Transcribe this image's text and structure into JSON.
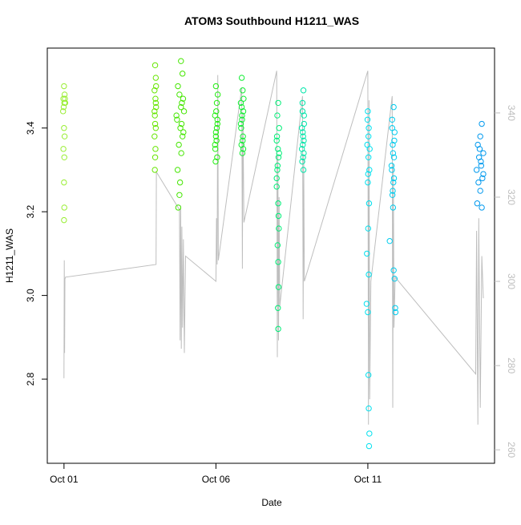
{
  "chart_data": {
    "type": "scatter",
    "title": "ATOM3 Southbound H1211_WAS",
    "xlabel": "Date",
    "ylabel": "H1211_WAS",
    "xlim": [
      -0.55,
      14.17
    ],
    "xticks": [
      {
        "value": 0,
        "label": "Oct 01"
      },
      {
        "value": 5,
        "label": "Oct 06"
      },
      {
        "value": 10,
        "label": "Oct 11"
      }
    ],
    "ylim": [
      2.599,
      3.591
    ],
    "yticks": [
      2.8,
      {
        "value": 3,
        "label": "3.0"
      },
      3.2,
      3.4
    ],
    "y2lim": [
      256.8,
      355.4
    ],
    "y2ticks": [
      260,
      280,
      300,
      320,
      340
    ],
    "y2color": "#bebebe",
    "series": [
      {
        "color": "#99ee33",
        "x": [
          0,
          0.02,
          -0.02,
          0.01,
          -0.01,
          0.03,
          0.0,
          0.02,
          -0.02,
          0.01,
          0.0,
          0.01,
          0.0,
          0.04,
          -0.03
        ],
        "values": [
          3.5,
          3.48,
          3.47,
          3.46,
          3.45,
          3.47,
          3.4,
          3.38,
          3.35,
          3.33,
          3.27,
          3.21,
          3.18,
          3.46,
          3.44
        ]
      },
      {
        "color": "#66e600",
        "x": [
          3.0,
          3.02,
          2.98,
          3.01,
          3.03,
          2.99,
          3.0,
          3.02,
          2.98,
          3.01,
          3.0,
          2.99,
          3.03,
          3.02,
          2.98
        ],
        "values": [
          3.55,
          3.52,
          3.49,
          3.47,
          3.45,
          3.43,
          3.41,
          3.4,
          3.38,
          3.35,
          3.33,
          3.3,
          3.5,
          3.46,
          3.44
        ]
      },
      {
        "color": "#44e600",
        "x": [
          3.85,
          3.9,
          3.75,
          3.8,
          3.88,
          3.95,
          3.72,
          3.83,
          3.9,
          3.78,
          3.86,
          3.74,
          3.82,
          3.8,
          3.76,
          3.92,
          3.85,
          3.7,
          3.87,
          3.93
        ],
        "values": [
          3.56,
          3.53,
          3.5,
          3.48,
          3.46,
          3.44,
          3.42,
          3.4,
          3.38,
          3.36,
          3.34,
          3.3,
          3.27,
          3.24,
          3.21,
          3.47,
          3.45,
          3.43,
          3.41,
          3.39
        ]
      },
      {
        "color": "#22ee11",
        "x": [
          5.0,
          5.03,
          4.97,
          5.05,
          5.0,
          5.02,
          4.98,
          5.04,
          4.99,
          5.06,
          5.01,
          5.03,
          4.97,
          5.05,
          5.0
        ],
        "values": [
          3.5,
          3.46,
          3.43,
          3.41,
          3.39,
          3.37,
          3.35,
          3.33,
          3.32,
          3.48,
          3.44,
          3.4,
          3.36,
          3.42,
          3.38
        ]
      },
      {
        "color": "#11ee33",
        "x": [
          5.85,
          5.88,
          5.82,
          5.9,
          5.86,
          5.83,
          5.89,
          5.84,
          5.87,
          5.91,
          5.85,
          5.82,
          5.88,
          5.9,
          5.86
        ],
        "values": [
          3.52,
          3.49,
          3.46,
          3.44,
          3.42,
          3.4,
          3.38,
          3.36,
          3.34,
          3.47,
          3.45,
          3.41,
          3.37,
          3.35,
          3.43
        ]
      },
      {
        "color": "#00ee77",
        "x": [
          7.05,
          7.02,
          7.08,
          7.0,
          7.04,
          7.06,
          7.02,
          7.0,
          7.05,
          7.07,
          7.03,
          7.05,
          7.06,
          7.04,
          7.05,
          7.01,
          7.08,
          7.03,
          7.0,
          7.06
        ],
        "values": [
          3.46,
          3.43,
          3.4,
          3.37,
          3.35,
          3.33,
          3.3,
          3.26,
          3.22,
          3.16,
          3.12,
          3.08,
          3.02,
          2.97,
          2.92,
          3.38,
          3.34,
          3.31,
          3.28,
          3.19
        ]
      },
      {
        "color": "#00e6aa",
        "x": [
          7.88,
          7.85,
          7.9,
          7.83,
          7.87,
          7.86,
          7.89,
          7.84,
          7.88,
          7.85,
          7.9,
          7.86,
          7.83,
          7.87,
          7.89
        ],
        "values": [
          3.49,
          3.46,
          3.43,
          3.4,
          3.38,
          3.36,
          3.34,
          3.32,
          3.3,
          3.44,
          3.41,
          3.39,
          3.35,
          3.33,
          3.37
        ]
      },
      {
        "color": "#00e0ee",
        "x": [
          10.0,
          10.03,
          9.98,
          10.02,
          10.05,
          10.0,
          10.04,
          10.01,
          9.97,
          10.03,
          9.96,
          10.0,
          10.02,
          10.03,
          10.05,
          10.04,
          9.99,
          10.02,
          10.06,
          10.01
        ],
        "values": [
          3.44,
          3.4,
          3.36,
          3.33,
          3.3,
          3.27,
          3.22,
          3.16,
          3.1,
          3.05,
          2.98,
          2.96,
          2.81,
          2.73,
          2.67,
          2.64,
          3.42,
          3.38,
          3.35,
          3.29
        ]
      },
      {
        "color": "#00ccee",
        "x": [
          10.85,
          10.8,
          10.88,
          10.82,
          10.86,
          10.79,
          10.84,
          10.81,
          10.83,
          10.72,
          10.85,
          10.88,
          10.9,
          10.91,
          10.8,
          10.87,
          10.83,
          10.78,
          10.86,
          10.82
        ],
        "values": [
          3.45,
          3.42,
          3.39,
          3.36,
          3.33,
          3.3,
          3.27,
          3.24,
          3.21,
          3.13,
          3.06,
          3.04,
          2.97,
          2.96,
          3.4,
          3.37,
          3.34,
          3.31,
          3.28,
          3.25
        ]
      },
      {
        "color": "#0099ee",
        "x": [
          13.75,
          13.7,
          13.62,
          13.8,
          13.66,
          13.73,
          13.58,
          13.77,
          13.64,
          13.7,
          13.6,
          13.75,
          13.68,
          13.72,
          13.8
        ],
        "values": [
          3.41,
          3.38,
          3.36,
          3.34,
          3.33,
          3.31,
          3.3,
          3.28,
          3.27,
          3.25,
          3.22,
          3.21,
          3.35,
          3.32,
          3.29
        ]
      },
      {
        "color": "#bebebe",
        "axis": "y2",
        "line": true,
        "x": [
          0.0,
          0.01,
          0.02,
          0.03,
          0.05,
          3.03,
          3.04,
          3.8,
          3.82,
          3.84,
          3.86,
          3.88,
          3.9,
          3.93,
          3.96,
          4.0,
          5.0,
          5.02,
          5.04,
          5.06,
          5.08,
          5.85,
          5.87,
          5.89,
          5.92,
          7.0,
          7.02,
          7.04,
          7.06,
          7.08,
          7.1,
          7.85,
          7.87,
          7.89,
          7.91,
          10.0,
          10.02,
          10.04,
          10.06,
          10.1,
          10.8,
          10.82,
          10.84,
          10.86,
          10.9,
          13.55,
          13.58,
          13.62,
          13.65,
          13.7,
          13.75,
          13.8
        ],
        "values": [
          277,
          305,
          283,
          300.5,
          301,
          304,
          326,
          317,
          286,
          318,
          284,
          313,
          289,
          310,
          283,
          306,
          300,
          315,
          304,
          349,
          305,
          346,
          303,
          340,
          314,
          350,
          282,
          330,
          286,
          320,
          294,
          344,
          291,
          330,
          300,
          350,
          266,
          343,
          272,
          300,
          344,
          270,
          328,
          289,
          301,
          278,
          312,
          266,
          315,
          270,
          306,
          296
        ]
      }
    ]
  }
}
